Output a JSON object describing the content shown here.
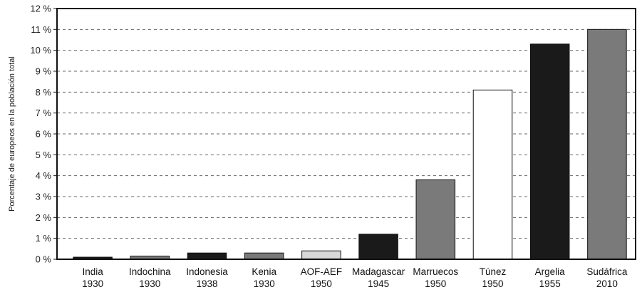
{
  "chart_data": {
    "type": "bar",
    "title": "",
    "xlabel": "",
    "ylabel": "Porcentaje de europeos en la población total",
    "ylim": [
      0,
      12
    ],
    "yticks": [
      0,
      1,
      2,
      3,
      4,
      5,
      6,
      7,
      8,
      9,
      10,
      11,
      12
    ],
    "ytick_suffix": " %",
    "grid": "horizontal-dashed",
    "legend": "none",
    "categories": [
      {
        "name": "India",
        "year": "1930"
      },
      {
        "name": "Indochina",
        "year": "1930"
      },
      {
        "name": "Indonesia",
        "year": "1938"
      },
      {
        "name": "Kenia",
        "year": "1930"
      },
      {
        "name": "AOF-AEF",
        "year": "1950"
      },
      {
        "name": "Madagascar",
        "year": "1945"
      },
      {
        "name": "Marruecos",
        "year": "1950"
      },
      {
        "name": "Túnez",
        "year": "1950"
      },
      {
        "name": "Argelia",
        "year": "1955"
      },
      {
        "name": "Sudáfrica",
        "year": "2010"
      }
    ],
    "values": [
      0.1,
      0.15,
      0.3,
      0.3,
      0.4,
      1.2,
      3.8,
      8.1,
      10.3,
      11.0
    ],
    "bar_colors": [
      "#1a1a1a",
      "#7a7a7a",
      "#1a1a1a",
      "#7a7a7a",
      "#d8d8d8",
      "#1a1a1a",
      "#7a7a7a",
      "#ffffff",
      "#1a1a1a",
      "#7a7a7a"
    ]
  }
}
